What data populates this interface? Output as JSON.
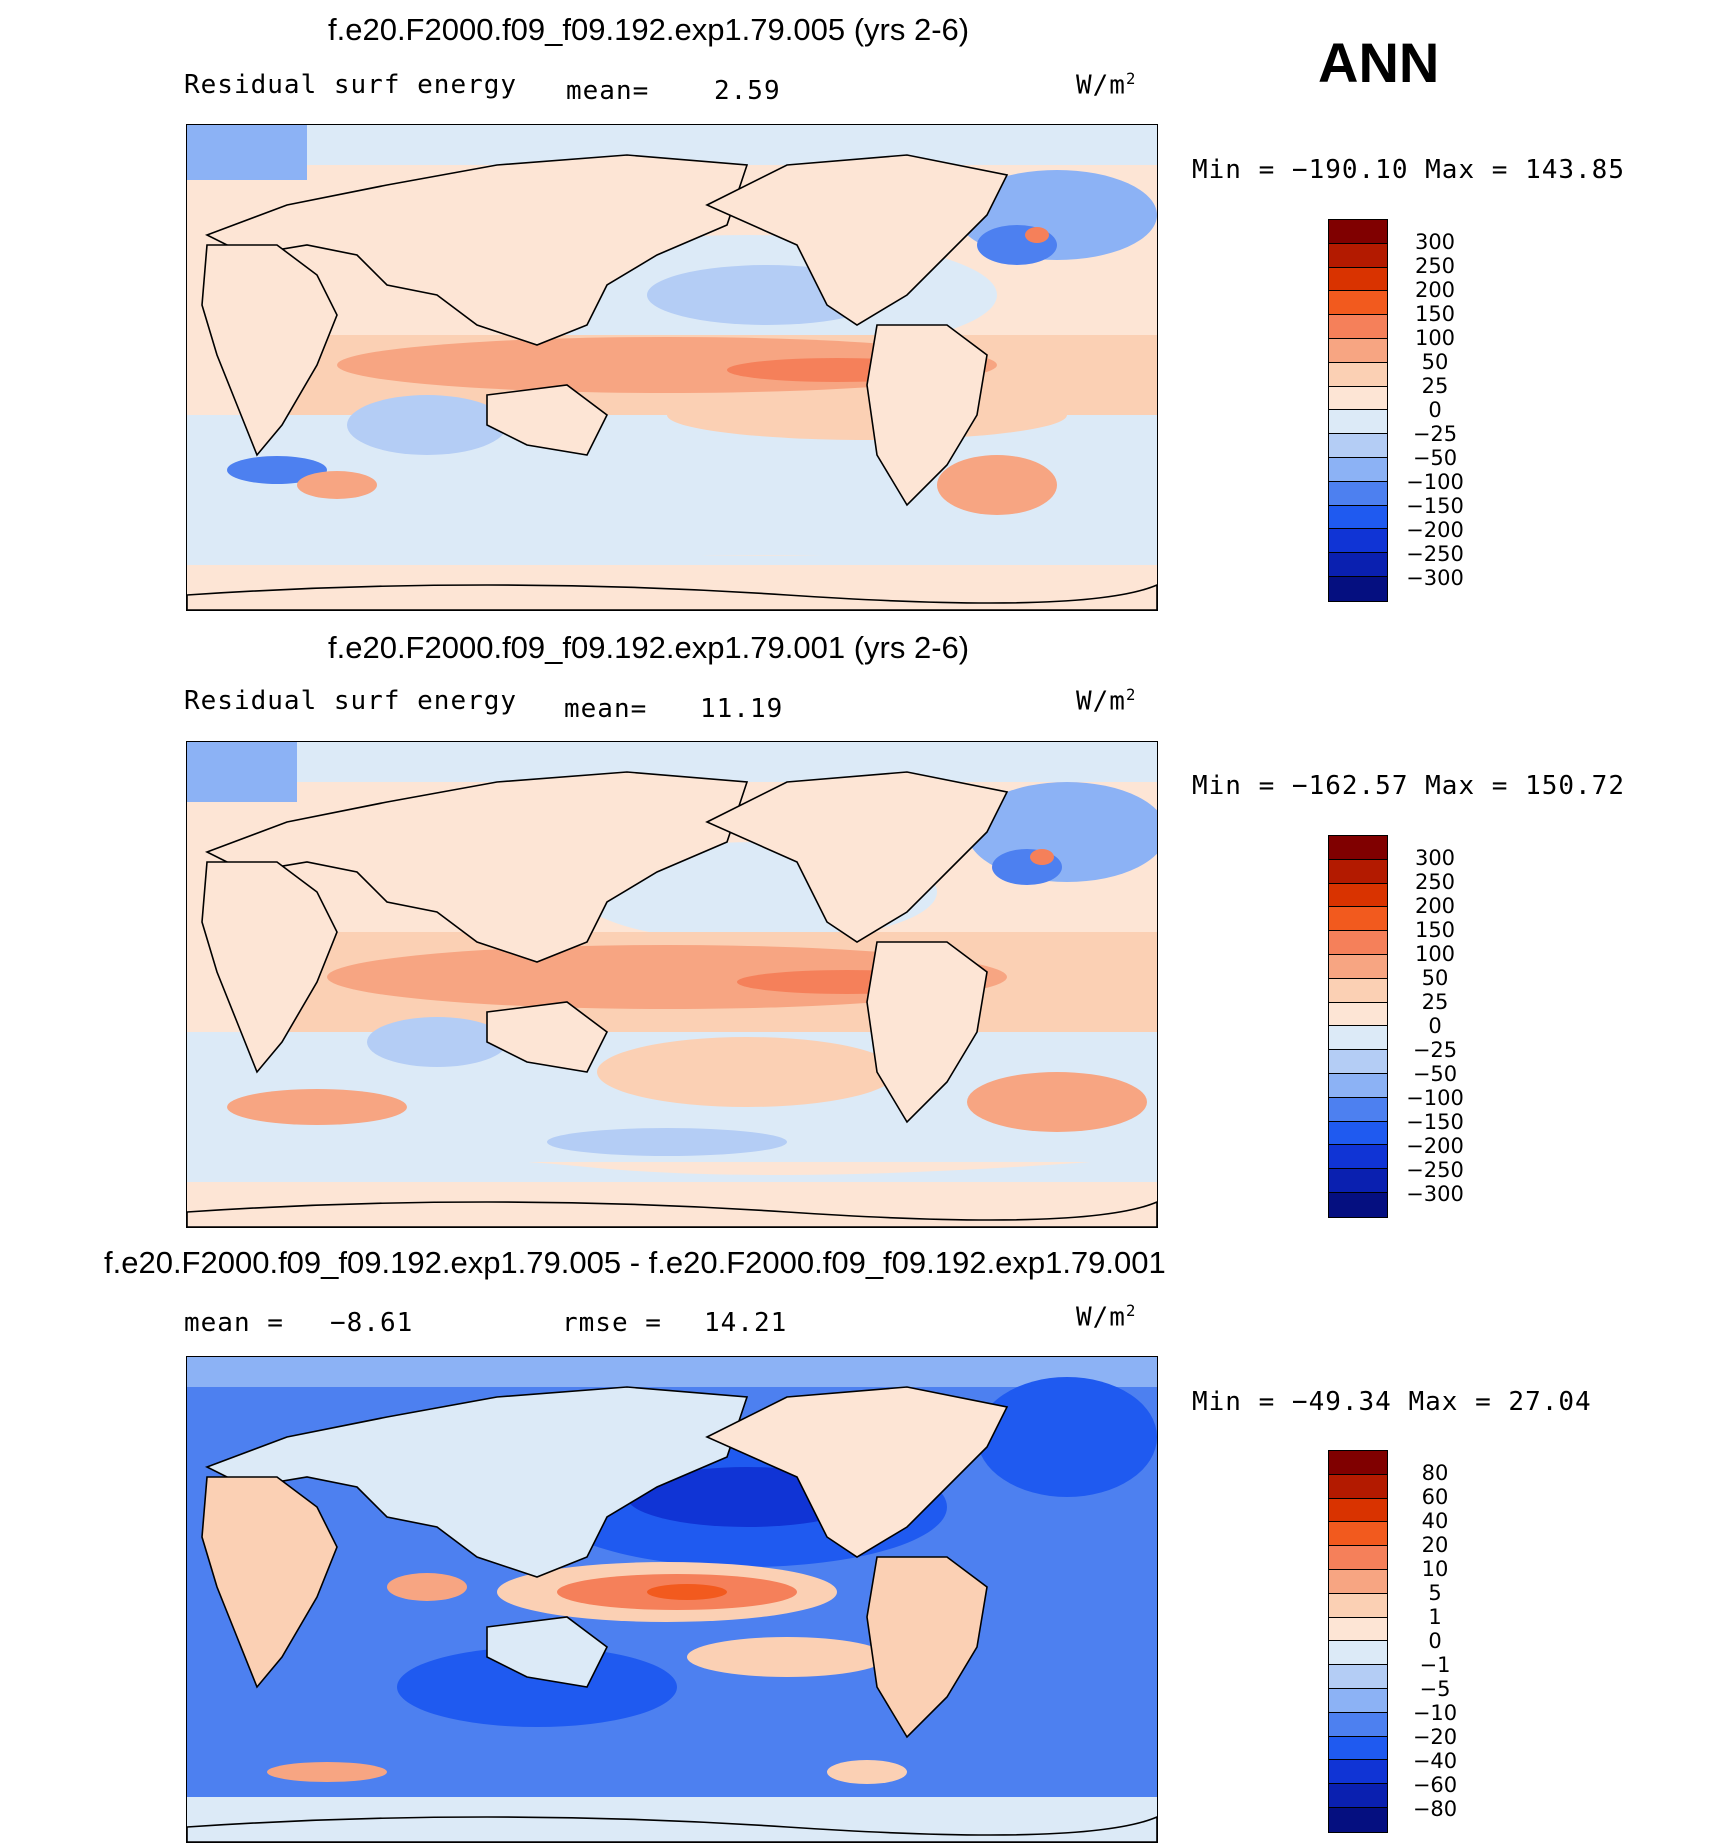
{
  "season": "ANN",
  "panels": [
    {
      "title": "f.e20.F2000.f09_f09.192.exp1.79.005 (yrs 2-6)",
      "variable": "Residual surf energy",
      "mean_label": "mean=",
      "mean_value": "2.59",
      "units": "W/m",
      "units_sup": "2",
      "minmax": "Min = −190.10 Max = 143.85",
      "colorbar_labels": [
        "300",
        "250",
        "200",
        "150",
        "100",
        "50",
        "25",
        "0",
        "−25",
        "−50",
        "−100",
        "−150",
        "−200",
        "−250",
        "−300"
      ]
    },
    {
      "title": "f.e20.F2000.f09_f09.192.exp1.79.001 (yrs 2-6)",
      "variable": "Residual surf energy",
      "mean_label": "mean=",
      "mean_value": "11.19",
      "units": "W/m",
      "units_sup": "2",
      "minmax": "Min = −162.57 Max = 150.72",
      "colorbar_labels": [
        "300",
        "250",
        "200",
        "150",
        "100",
        "50",
        "25",
        "0",
        "−25",
        "−50",
        "−100",
        "−150",
        "−200",
        "−250",
        "−300"
      ]
    },
    {
      "title": "f.e20.F2000.f09_f09.192.exp1.79.005 - f.e20.F2000.f09_f09.192.exp1.79.001",
      "mean_label": "mean =",
      "mean_value": "−8.61",
      "rmse_label": "rmse =",
      "rmse_value": "14.21",
      "units": "W/m",
      "units_sup": "2",
      "minmax": "Min = −49.34 Max =  27.04",
      "colorbar_labels": [
        "80",
        "60",
        "40",
        "20",
        "10",
        "5",
        "1",
        "0",
        "−1",
        "−5",
        "−10",
        "−20",
        "−40",
        "−60",
        "−80"
      ]
    }
  ],
  "colors": {
    "levels": [
      "#800000",
      "#b31a00",
      "#d93300",
      "#f25a1e",
      "#f5805a",
      "#f7a582",
      "#fbd0b4",
      "#fde5d5",
      "#dceaf7",
      "#b4cdf5",
      "#8cb2f5",
      "#4d80f0",
      "#1f5af0",
      "#1034d5",
      "#0a20b0",
      "#050f80"
    ],
    "land": "#fde5d5",
    "coast": "#000000"
  }
}
